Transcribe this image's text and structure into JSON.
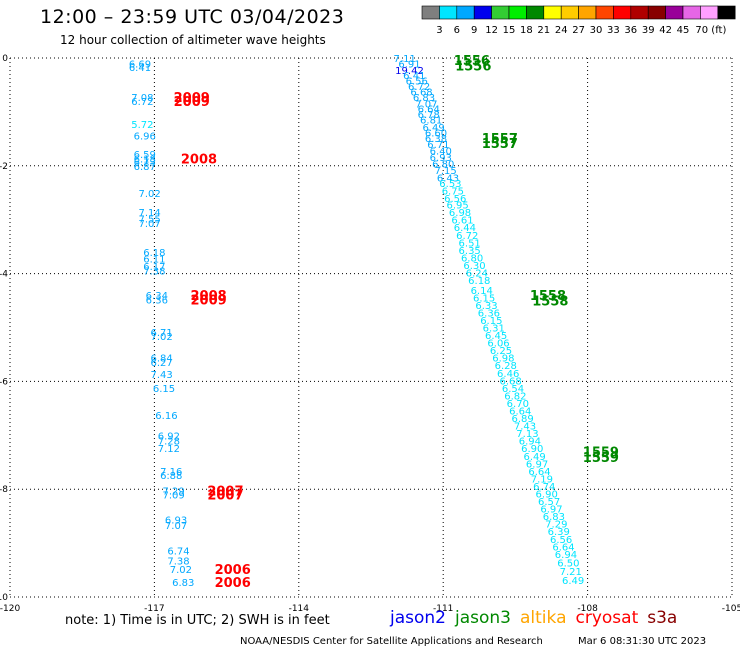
{
  "header": {
    "title": "12:00 – 23:59 UTC 03/04/2023",
    "subtitle": "12 hour collection of altimeter wave heights"
  },
  "colorbar": {
    "colors": [
      "#7f7f7f",
      "#00e5ff",
      "#00a8ff",
      "#0000ee",
      "#33cc33",
      "#00ee00",
      "#008800",
      "#ffff00",
      "#ffcc00",
      "#ffa500",
      "#ff4500",
      "#ff0000",
      "#b00000",
      "#880000",
      "#990099",
      "#e666e6",
      "#ff9fff",
      "#000000"
    ],
    "labels": [
      "3",
      "6",
      "9",
      "12",
      "15",
      "18",
      "21",
      "24",
      "27",
      "30",
      "33",
      "36",
      "39",
      "42",
      "45",
      "70 (ft)"
    ]
  },
  "legend": [
    {
      "label": "jason2",
      "color": "#0000ee"
    },
    {
      "label": "jason3",
      "color": "#008800"
    },
    {
      "label": "altika",
      "color": "#ffa500"
    },
    {
      "label": "cryosat",
      "color": "#ff0000"
    },
    {
      "label": "s3a",
      "color": "#880000"
    }
  ],
  "footer": {
    "note": "note:  1) Time is in UTC;  2) SWH is in feet",
    "credit": "NOAA/NESDIS Center for Satellite Applications and Research",
    "timestamp": "Mar  6 08:31:30 UTC 2023"
  },
  "chart_data": {
    "type": "scatter",
    "xlim": [
      -120,
      -105
    ],
    "ylim": [
      -10,
      0
    ],
    "xticks": [
      -120,
      -117,
      -114,
      -111,
      -108,
      -105
    ],
    "yticks": [
      0,
      -2,
      -4,
      -6,
      -8,
      -10
    ],
    "xtick_labels": [
      "-120",
      "-117",
      "-114",
      "-111",
      "-108",
      "-105"
    ],
    "ytick_labels": [
      "0",
      "-2",
      "-4",
      "-6",
      "-8",
      "-10"
    ],
    "grid": true,
    "track_labels": [
      {
        "text": "1556",
        "x": -110.78,
        "y": -0.04,
        "color": "#008800"
      },
      {
        "text": "1556",
        "x": -110.75,
        "y": -0.14,
        "color": "#008800"
      },
      {
        "text": "1557",
        "x": -110.2,
        "y": -1.48,
        "color": "#008800"
      },
      {
        "text": "1557",
        "x": -110.2,
        "y": -1.58,
        "color": "#008800"
      },
      {
        "text": "1558",
        "x": -109.2,
        "y": -4.4,
        "color": "#008800"
      },
      {
        "text": "1558",
        "x": -109.15,
        "y": -4.5,
        "color": "#008800"
      },
      {
        "text": "1559",
        "x": -108.1,
        "y": -7.3,
        "color": "#008800"
      },
      {
        "text": "1559",
        "x": -108.1,
        "y": -7.4,
        "color": "#008800"
      },
      {
        "text": "2009",
        "x": -116.6,
        "y": -0.72,
        "color": "#ff0000"
      },
      {
        "text": "2009",
        "x": -116.6,
        "y": -0.8,
        "color": "#ff0000"
      },
      {
        "text": "2008",
        "x": -116.45,
        "y": -1.86,
        "color": "#ff0000"
      },
      {
        "text": "2008",
        "x": -116.25,
        "y": -4.4,
        "color": "#ff0000"
      },
      {
        "text": "2009",
        "x": -116.25,
        "y": -4.48,
        "color": "#ff0000"
      },
      {
        "text": "2007",
        "x": -115.9,
        "y": -8.02,
        "color": "#ff0000"
      },
      {
        "text": "2007",
        "x": -115.9,
        "y": -8.1,
        "color": "#ff0000"
      },
      {
        "text": "2006",
        "x": -115.75,
        "y": -9.48,
        "color": "#ff0000"
      },
      {
        "text": "2006",
        "x": -115.75,
        "y": -9.72,
        "color": "#ff0000"
      }
    ],
    "value_labels": [
      {
        "text": "6.69",
        "x": -117.3,
        "y": -0.1,
        "color": "#00a8ff"
      },
      {
        "text": "6.41",
        "x": -117.3,
        "y": -0.17,
        "color": "#00a8ff"
      },
      {
        "text": "7.08",
        "x": -117.25,
        "y": -0.72,
        "color": "#00a8ff"
      },
      {
        "text": "6.72",
        "x": -117.25,
        "y": -0.8,
        "color": "#00a8ff"
      },
      {
        "text": "5.72",
        "x": -117.25,
        "y": -1.22,
        "color": "#00e5ff"
      },
      {
        "text": "6.96",
        "x": -117.2,
        "y": -1.44,
        "color": "#00a8ff"
      },
      {
        "text": "6.59",
        "x": -117.2,
        "y": -1.78,
        "color": "#00a8ff"
      },
      {
        "text": "6.18",
        "x": -117.2,
        "y": -1.86,
        "color": "#00a8ff"
      },
      {
        "text": "6.73",
        "x": -117.2,
        "y": -1.92,
        "color": "#00a8ff"
      },
      {
        "text": "6.87",
        "x": -117.2,
        "y": -2.0,
        "color": "#00a8ff"
      },
      {
        "text": "7.02",
        "x": -117.1,
        "y": -2.5,
        "color": "#00a8ff"
      },
      {
        "text": "7.14",
        "x": -117.1,
        "y": -2.86,
        "color": "#00a8ff"
      },
      {
        "text": "7.55",
        "x": -117.1,
        "y": -2.98,
        "color": "#00a8ff"
      },
      {
        "text": "7.07",
        "x": -117.1,
        "y": -3.06,
        "color": "#00a8ff"
      },
      {
        "text": "6.18",
        "x": -117.0,
        "y": -3.6,
        "color": "#00a8ff"
      },
      {
        "text": "6.11",
        "x": -117.0,
        "y": -3.72,
        "color": "#00a8ff"
      },
      {
        "text": "6.17",
        "x": -117.0,
        "y": -3.86,
        "color": "#00a8ff"
      },
      {
        "text": "7.38",
        "x": -117.0,
        "y": -3.94,
        "color": "#00a8ff"
      },
      {
        "text": "6.34",
        "x": -116.95,
        "y": -4.4,
        "color": "#00a8ff"
      },
      {
        "text": "6.36",
        "x": -116.95,
        "y": -4.48,
        "color": "#00a8ff"
      },
      {
        "text": "6.71",
        "x": -116.85,
        "y": -5.08,
        "color": "#00a8ff"
      },
      {
        "text": "7.02",
        "x": -116.85,
        "y": -5.16,
        "color": "#00a8ff"
      },
      {
        "text": "6.84",
        "x": -116.85,
        "y": -5.56,
        "color": "#00a8ff"
      },
      {
        "text": "6.27",
        "x": -116.85,
        "y": -5.64,
        "color": "#00a8ff"
      },
      {
        "text": "7.43",
        "x": -116.85,
        "y": -5.86,
        "color": "#00a8ff"
      },
      {
        "text": "6.15",
        "x": -116.8,
        "y": -6.12,
        "color": "#00a8ff"
      },
      {
        "text": "6.16",
        "x": -116.75,
        "y": -6.62,
        "color": "#00a8ff"
      },
      {
        "text": "6.92",
        "x": -116.7,
        "y": -7.0,
        "color": "#00a8ff"
      },
      {
        "text": "7.28",
        "x": -116.7,
        "y": -7.1,
        "color": "#00a8ff"
      },
      {
        "text": "7.12",
        "x": -116.7,
        "y": -7.24,
        "color": "#00a8ff"
      },
      {
        "text": "7.16",
        "x": -116.65,
        "y": -7.66,
        "color": "#00a8ff"
      },
      {
        "text": "6.88",
        "x": -116.65,
        "y": -7.74,
        "color": "#00a8ff"
      },
      {
        "text": "7.29",
        "x": -116.6,
        "y": -8.02,
        "color": "#00a8ff"
      },
      {
        "text": "7.09",
        "x": -116.6,
        "y": -8.1,
        "color": "#00a8ff"
      },
      {
        "text": "6.93",
        "x": -116.55,
        "y": -8.56,
        "color": "#00a8ff"
      },
      {
        "text": "7.07",
        "x": -116.55,
        "y": -8.66,
        "color": "#00a8ff"
      },
      {
        "text": "6.74",
        "x": -116.5,
        "y": -9.14,
        "color": "#00a8ff"
      },
      {
        "text": "7.38",
        "x": -116.5,
        "y": -9.32,
        "color": "#00a8ff"
      },
      {
        "text": "7.02",
        "x": -116.45,
        "y": -9.48,
        "color": "#00a8ff"
      },
      {
        "text": "6.83",
        "x": -116.4,
        "y": -9.72,
        "color": "#00a8ff"
      },
      {
        "text": "7.11",
        "x": -111.8,
        "y": -0.0,
        "color": "#00a8ff"
      },
      {
        "text": "6.91",
        "x": -111.7,
        "y": -0.1,
        "color": "#00a8ff"
      },
      {
        "text": "19.42",
        "x": -111.7,
        "y": -0.22,
        "color": "#0000ee"
      },
      {
        "text": "6.41",
        "x": -111.6,
        "y": -0.32,
        "color": "#00a8ff"
      },
      {
        "text": "6.56",
        "x": -111.55,
        "y": -0.42,
        "color": "#00a8ff"
      },
      {
        "text": "6.72",
        "x": -111.5,
        "y": -0.52,
        "color": "#00a8ff"
      },
      {
        "text": "6.68",
        "x": -111.45,
        "y": -0.62,
        "color": "#00a8ff"
      },
      {
        "text": "6.83",
        "x": -111.4,
        "y": -0.72,
        "color": "#00a8ff"
      },
      {
        "text": "7.07",
        "x": -111.35,
        "y": -0.84,
        "color": "#00a8ff"
      },
      {
        "text": "6.64",
        "x": -111.3,
        "y": -0.94,
        "color": "#00a8ff"
      },
      {
        "text": "6.78",
        "x": -111.3,
        "y": -1.04,
        "color": "#00a8ff"
      },
      {
        "text": "6.81",
        "x": -111.25,
        "y": -1.14,
        "color": "#00a8ff"
      },
      {
        "text": "6.49",
        "x": -111.2,
        "y": -1.28,
        "color": "#00a8ff"
      },
      {
        "text": "6.60",
        "x": -111.15,
        "y": -1.38,
        "color": "#00a8ff"
      },
      {
        "text": "6.38",
        "x": -111.15,
        "y": -1.48,
        "color": "#00a8ff"
      },
      {
        "text": "6.71",
        "x": -111.1,
        "y": -1.6,
        "color": "#00a8ff"
      },
      {
        "text": "6.40",
        "x": -111.05,
        "y": -1.72,
        "color": "#00a8ff"
      },
      {
        "text": "6.93",
        "x": -111.05,
        "y": -1.84,
        "color": "#00a8ff"
      },
      {
        "text": "6.80",
        "x": -111.0,
        "y": -1.96,
        "color": "#00a8ff"
      },
      {
        "text": "7.15",
        "x": -110.95,
        "y": -2.08,
        "color": "#00a8ff"
      },
      {
        "text": "6.43",
        "x": -110.9,
        "y": -2.22,
        "color": "#00a8ff"
      },
      {
        "text": "6.53",
        "x": -110.85,
        "y": -2.32,
        "color": "#00e5ff"
      },
      {
        "text": "6.75",
        "x": -110.8,
        "y": -2.46,
        "color": "#00e5ff"
      },
      {
        "text": "6.56",
        "x": -110.75,
        "y": -2.6,
        "color": "#00e5ff"
      },
      {
        "text": "6.95",
        "x": -110.7,
        "y": -2.72,
        "color": "#00e5ff"
      },
      {
        "text": "6.98",
        "x": -110.65,
        "y": -2.86,
        "color": "#00e5ff"
      },
      {
        "text": "6.61",
        "x": -110.6,
        "y": -3.0,
        "color": "#00e5ff"
      },
      {
        "text": "6.44",
        "x": -110.55,
        "y": -3.14,
        "color": "#00e5ff"
      },
      {
        "text": "6.72",
        "x": -110.5,
        "y": -3.28,
        "color": "#00e5ff"
      },
      {
        "text": "6.51",
        "x": -110.45,
        "y": -3.42,
        "color": "#00e5ff"
      },
      {
        "text": "6.35",
        "x": -110.45,
        "y": -3.56,
        "color": "#00e5ff"
      },
      {
        "text": "6.80",
        "x": -110.4,
        "y": -3.7,
        "color": "#00e5ff"
      },
      {
        "text": "6.30",
        "x": -110.35,
        "y": -3.84,
        "color": "#00e5ff"
      },
      {
        "text": "6.24",
        "x": -110.3,
        "y": -3.98,
        "color": "#00e5ff"
      },
      {
        "text": "6.18",
        "x": -110.25,
        "y": -4.12,
        "color": "#00e5ff"
      },
      {
        "text": "6.14",
        "x": -110.2,
        "y": -4.3,
        "color": "#00e5ff"
      },
      {
        "text": "6.15",
        "x": -110.15,
        "y": -4.44,
        "color": "#00e5ff"
      },
      {
        "text": "6.33",
        "x": -110.1,
        "y": -4.58,
        "color": "#00e5ff"
      },
      {
        "text": "6.36",
        "x": -110.05,
        "y": -4.72,
        "color": "#00e5ff"
      },
      {
        "text": "6.15",
        "x": -110.0,
        "y": -4.86,
        "color": "#00e5ff"
      },
      {
        "text": "6.31",
        "x": -109.95,
        "y": -5.0,
        "color": "#00e5ff"
      },
      {
        "text": "6.45",
        "x": -109.9,
        "y": -5.14,
        "color": "#00e5ff"
      },
      {
        "text": "6.06",
        "x": -109.85,
        "y": -5.28,
        "color": "#00e5ff"
      },
      {
        "text": "6.25",
        "x": -109.8,
        "y": -5.42,
        "color": "#00e5ff"
      },
      {
        "text": "6.98",
        "x": -109.75,
        "y": -5.56,
        "color": "#00e5ff"
      },
      {
        "text": "6.28",
        "x": -109.7,
        "y": -5.7,
        "color": "#00e5ff"
      },
      {
        "text": "6.46",
        "x": -109.65,
        "y": -5.84,
        "color": "#00e5ff"
      },
      {
        "text": "6.68",
        "x": -109.6,
        "y": -5.98,
        "color": "#00e5ff"
      },
      {
        "text": "6.54",
        "x": -109.55,
        "y": -6.12,
        "color": "#00e5ff"
      },
      {
        "text": "6.82",
        "x": -109.5,
        "y": -6.26,
        "color": "#00e5ff"
      },
      {
        "text": "6.70",
        "x": -109.45,
        "y": -6.4,
        "color": "#00e5ff"
      },
      {
        "text": "6.64",
        "x": -109.4,
        "y": -6.54,
        "color": "#00e5ff"
      },
      {
        "text": "6.89",
        "x": -109.35,
        "y": -6.68,
        "color": "#00e5ff"
      },
      {
        "text": "7.43",
        "x": -109.3,
        "y": -6.82,
        "color": "#00e5ff"
      },
      {
        "text": "7.13",
        "x": -109.25,
        "y": -6.96,
        "color": "#00e5ff"
      },
      {
        "text": "6.94",
        "x": -109.2,
        "y": -7.1,
        "color": "#00e5ff"
      },
      {
        "text": "6.90",
        "x": -109.15,
        "y": -7.24,
        "color": "#00e5ff"
      },
      {
        "text": "6.49",
        "x": -109.1,
        "y": -7.38,
        "color": "#00e5ff"
      },
      {
        "text": "6.97",
        "x": -109.05,
        "y": -7.52,
        "color": "#00e5ff"
      },
      {
        "text": "6.64",
        "x": -109.0,
        "y": -7.66,
        "color": "#00e5ff"
      },
      {
        "text": "7.19",
        "x": -108.95,
        "y": -7.8,
        "color": "#00e5ff"
      },
      {
        "text": "6.74",
        "x": -108.9,
        "y": -7.94,
        "color": "#00e5ff"
      },
      {
        "text": "6.90",
        "x": -108.85,
        "y": -8.08,
        "color": "#00e5ff"
      },
      {
        "text": "6.57",
        "x": -108.8,
        "y": -8.22,
        "color": "#00e5ff"
      },
      {
        "text": "6.97",
        "x": -108.75,
        "y": -8.36,
        "color": "#00e5ff"
      },
      {
        "text": "6.83",
        "x": -108.7,
        "y": -8.5,
        "color": "#00e5ff"
      },
      {
        "text": "7.29",
        "x": -108.65,
        "y": -8.64,
        "color": "#00e5ff"
      },
      {
        "text": "6.39",
        "x": -108.6,
        "y": -8.78,
        "color": "#00e5ff"
      },
      {
        "text": "6.56",
        "x": -108.55,
        "y": -8.92,
        "color": "#00e5ff"
      },
      {
        "text": "6.64",
        "x": -108.5,
        "y": -9.06,
        "color": "#00e5ff"
      },
      {
        "text": "6.94",
        "x": -108.45,
        "y": -9.2,
        "color": "#00e5ff"
      },
      {
        "text": "6.50",
        "x": -108.4,
        "y": -9.36,
        "color": "#00e5ff"
      },
      {
        "text": "7.21",
        "x": -108.35,
        "y": -9.52,
        "color": "#00e5ff"
      },
      {
        "text": "6.49",
        "x": -108.3,
        "y": -9.68,
        "color": "#00e5ff"
      }
    ]
  }
}
